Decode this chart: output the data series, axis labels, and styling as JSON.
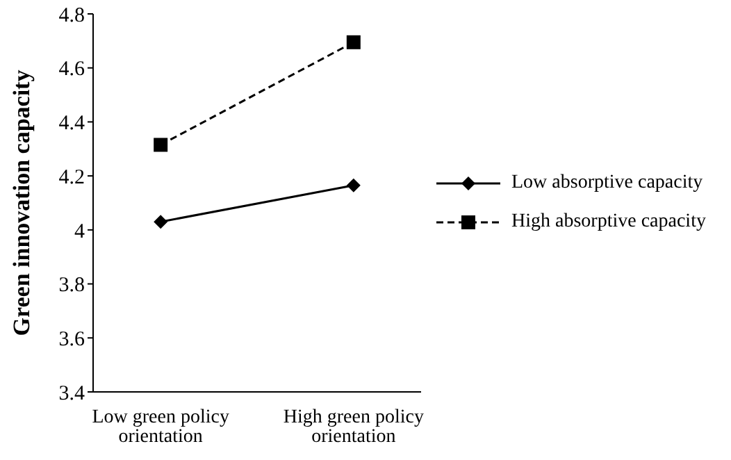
{
  "chart_data": {
    "type": "line",
    "ylabel": "Green innovation capacity",
    "categories": [
      "Low green policy orientation",
      "High green policy orientation"
    ],
    "series": [
      {
        "name": "Low absorptive capacity",
        "color": "#000000",
        "values": [
          4.03,
          4.165
        ],
        "marker": "diamond",
        "line_style": "solid"
      },
      {
        "name": "High absorptive capacity",
        "color": "#000000",
        "values": [
          4.315,
          4.695
        ],
        "marker": "square",
        "line_style": "dashed"
      }
    ],
    "ylim": [
      3.4,
      4.8
    ],
    "yticks": [
      3.4,
      3.6,
      3.8,
      4,
      4.2,
      4.4,
      4.6,
      4.8
    ],
    "grid": false,
    "legend": "right"
  }
}
